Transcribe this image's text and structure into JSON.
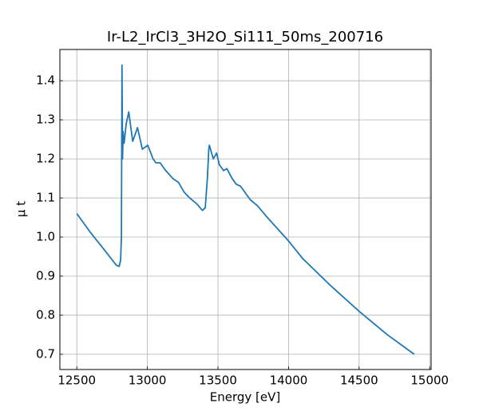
{
  "chart_data": {
    "type": "line",
    "title": "Ir-L2_IrCl3_3H2O_Si111_50ms_200716",
    "x_label": "Energy [eV]",
    "y_label": "μ t",
    "color": "#1f77b4",
    "grid": true,
    "xlim": [
      12380,
      15010
    ],
    "ylim": [
      0.661,
      1.48
    ],
    "xticks": [
      12500,
      13000,
      13500,
      14000,
      14500,
      15000
    ],
    "yticks": [
      0.7,
      0.8,
      0.9,
      {
        "value": 1.0,
        "label": "1.0"
      },
      1.1,
      1.2,
      1.3,
      1.4
    ],
    "x": [
      12500,
      12600,
      12700,
      12780,
      12800,
      12810,
      12816,
      12820,
      12824,
      12828,
      12835,
      12850,
      12868,
      12896,
      12930,
      12964,
      13003,
      13040,
      13060,
      13090,
      13130,
      13180,
      13220,
      13260,
      13300,
      13350,
      13390,
      13410,
      13425,
      13435,
      13439,
      13467,
      13490,
      13510,
      13540,
      13563,
      13600,
      13630,
      13660,
      13700,
      13730,
      13780,
      13850,
      14000,
      14100,
      14300,
      14500,
      14700,
      14890
    ],
    "values": [
      1.06,
      1.01,
      0.965,
      0.928,
      0.925,
      0.94,
      1.0,
      1.44,
      1.2,
      1.27,
      1.24,
      1.29,
      1.32,
      1.245,
      1.28,
      1.225,
      1.235,
      1.2,
      1.19,
      1.19,
      1.17,
      1.15,
      1.14,
      1.115,
      1.1,
      1.085,
      1.068,
      1.075,
      1.15,
      1.225,
      1.235,
      1.2,
      1.215,
      1.185,
      1.17,
      1.175,
      1.15,
      1.135,
      1.13,
      1.11,
      1.095,
      1.08,
      1.05,
      0.99,
      0.945,
      0.875,
      0.81,
      0.75,
      0.7
    ]
  }
}
